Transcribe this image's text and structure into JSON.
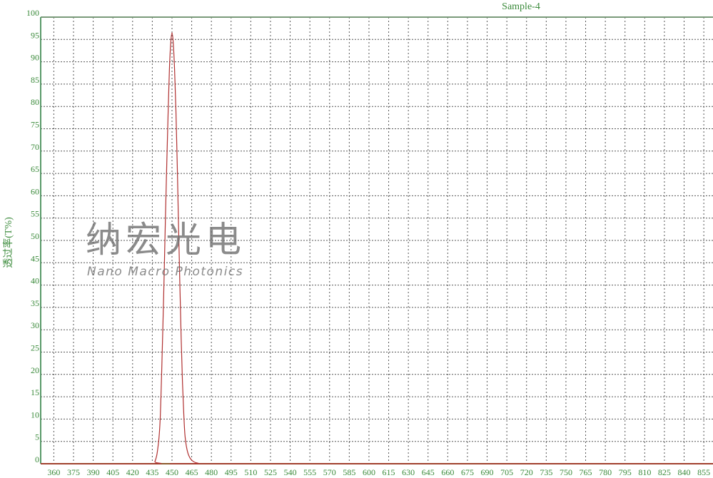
{
  "chart_data": {
    "type": "line",
    "title": "Sample-4",
    "xlabel": "",
    "ylabel": "透过率(T%)",
    "xlim": [
      350,
      862
    ],
    "ylim": [
      0,
      100
    ],
    "grid": true,
    "x_ticks": [
      360,
      375,
      390,
      405,
      420,
      435,
      450,
      465,
      480,
      495,
      510,
      525,
      540,
      555,
      570,
      585,
      600,
      615,
      630,
      645,
      660,
      675,
      690,
      705,
      720,
      735,
      750,
      765,
      780,
      795,
      810,
      825,
      840,
      855
    ],
    "y_ticks": [
      0,
      5,
      10,
      15,
      20,
      25,
      30,
      35,
      40,
      45,
      50,
      55,
      60,
      65,
      70,
      75,
      80,
      85,
      90,
      95,
      100
    ],
    "series": [
      {
        "color": "#b03030",
        "x": [
          350,
          435,
          437,
          439,
          441,
          443,
          444,
          445,
          446,
          447,
          448,
          449,
          450,
          451,
          452,
          453,
          454,
          455,
          456,
          457,
          458,
          459,
          460,
          462,
          465,
          470,
          480,
          862
        ],
        "y": [
          0,
          0,
          0.5,
          3,
          10,
          30,
          42,
          55,
          67,
          78,
          88,
          94,
          96.5,
          94,
          88,
          79,
          67,
          53,
          40,
          28,
          18,
          11,
          6,
          2.5,
          0.8,
          0.1,
          0,
          0
        ]
      }
    ],
    "colors": {
      "axis": "#3a8a3a",
      "grid": "#555555",
      "baseline": "#8b5a2b"
    }
  },
  "watermark": {
    "cn": "纳宏光电",
    "en": "Nano Macro Photonics"
  }
}
